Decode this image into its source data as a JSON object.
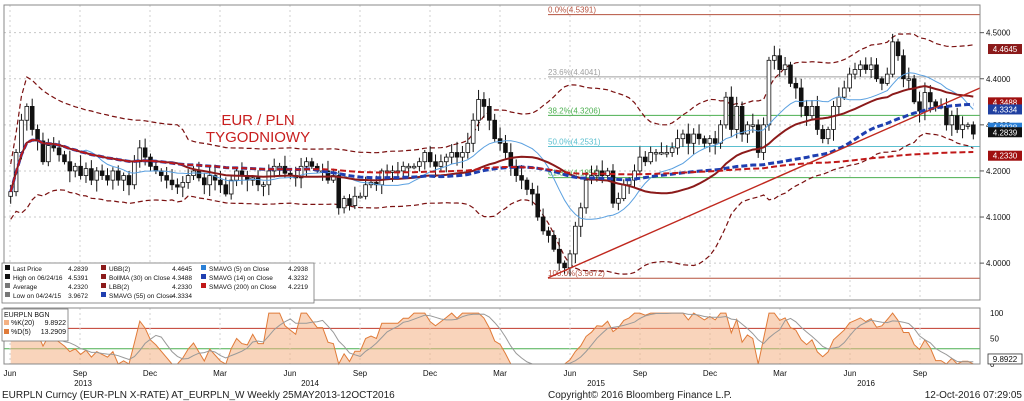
{
  "chart_data": [
    {
      "type": "candlestick",
      "instrument": "EURPLN Curncy (EUR-PLN X-RATE)",
      "title_annotation": [
        "EUR / PLN",
        "TYGODNIOWY"
      ],
      "ylim": [
        3.92,
        4.56
      ],
      "y_ticks": [
        4.0,
        4.1,
        4.2,
        4.3,
        4.4,
        4.5
      ],
      "y_tick_labels": [
        "4.0000",
        "4.1000",
        "4.2000",
        "4.3000",
        "4.4000",
        "4.5000"
      ],
      "x_month_labels": [
        "Jun",
        "Sep",
        "Dec",
        "Mar",
        "Jun",
        "Sep",
        "Dec",
        "Mar",
        "Jun",
        "Sep",
        "Dec",
        "Mar",
        "Jun",
        "Sep"
      ],
      "x_year_labels": [
        "2013",
        "2014",
        "2015",
        "2016"
      ],
      "fib_levels": [
        {
          "label": "0.0%(4.5391)",
          "value": 4.5391,
          "color": "#b5523f"
        },
        {
          "label": "23.6%(4.4041)",
          "value": 4.4041,
          "color": "#a0a0a0"
        },
        {
          "label": "38.2%(4.3206)",
          "value": 4.3206,
          "color": "#4caf50"
        },
        {
          "label": "50.0%(4.2531)",
          "value": 4.2531,
          "color": "#5bbfcf"
        },
        {
          "label": "61.8%(4.1856)",
          "value": 4.1856,
          "color": "#4caf50"
        },
        {
          "label": "100.0%(3.9672)",
          "value": 3.9672,
          "color": "#b5523f"
        }
      ],
      "right_tags": [
        {
          "text": "4.4645",
          "value": 4.4645,
          "bg": "#8b1a1a"
        },
        {
          "text": "4.3488",
          "value": 4.3488,
          "bg": "#a01010"
        },
        {
          "text": "4.3334",
          "value": 4.3334,
          "bg": "#1f3fa0"
        },
        {
          "text": "4.2938",
          "value": 4.2938,
          "bg": "#2a7fd6"
        },
        {
          "text": "4.2839",
          "value": 4.2839,
          "bg": "#111111"
        },
        {
          "text": "4.2330",
          "value": 4.233,
          "bg": "#a01010"
        }
      ],
      "weekly_closes": [
        4.155,
        4.24,
        4.31,
        4.34,
        4.29,
        4.265,
        4.22,
        4.255,
        4.25,
        4.235,
        4.22,
        4.2,
        4.21,
        4.19,
        4.205,
        4.18,
        4.2,
        4.19,
        4.18,
        4.2,
        4.18,
        4.19,
        4.17,
        4.22,
        4.25,
        4.23,
        4.21,
        4.2,
        4.19,
        4.18,
        4.17,
        4.165,
        4.175,
        4.19,
        4.2,
        4.185,
        4.17,
        4.19,
        4.18,
        4.17,
        4.15,
        4.18,
        4.2,
        4.19,
        4.18,
        4.185,
        4.17,
        4.17,
        4.2,
        4.21,
        4.21,
        4.195,
        4.19,
        4.185,
        4.21,
        4.22,
        4.21,
        4.2,
        4.2,
        4.18,
        4.19,
        4.12,
        4.14,
        4.125,
        4.145,
        4.145,
        4.17,
        4.175,
        4.17,
        4.2,
        4.2,
        4.2,
        4.2,
        4.21,
        4.21,
        4.21,
        4.22,
        4.24,
        4.22,
        4.21,
        4.22,
        4.23,
        4.24,
        4.23,
        4.24,
        4.26,
        4.31,
        4.355,
        4.34,
        4.31,
        4.27,
        4.26,
        4.24,
        4.21,
        4.19,
        4.18,
        4.16,
        4.15,
        4.1,
        4.07,
        4.06,
        4.03,
        4.0,
        3.99,
        4.02,
        4.08,
        4.12,
        4.18,
        4.19,
        4.2,
        4.19,
        4.2,
        4.13,
        4.14,
        4.17,
        4.18,
        4.2,
        4.23,
        4.22,
        4.24,
        4.24,
        4.24,
        4.24,
        4.25,
        4.27,
        4.28,
        4.26,
        4.28,
        4.27,
        4.26,
        4.27,
        4.26,
        4.3,
        4.36,
        4.29,
        4.34,
        4.28,
        4.3,
        4.3,
        4.24,
        4.3,
        4.44,
        4.45,
        4.42,
        4.43,
        4.39,
        4.38,
        4.34,
        4.32,
        4.34,
        4.29,
        4.27,
        4.29,
        4.34,
        4.36,
        4.38,
        4.41,
        4.42,
        4.43,
        4.42,
        4.43,
        4.4,
        4.39,
        4.41,
        4.48,
        4.45,
        4.4,
        4.4,
        4.35,
        4.33,
        4.37,
        4.35,
        4.34,
        4.34,
        4.3,
        4.32,
        4.29,
        4.3,
        4.3,
        4.28
      ],
      "legend": {
        "col1": [
          {
            "label": "Last Price",
            "value": "4.2839"
          },
          {
            "label": "High on 06/24/16",
            "value": "4.5391"
          },
          {
            "label": "Average",
            "value": "4.2320"
          },
          {
            "label": "Low on 04/24/15",
            "value": "3.9672"
          }
        ],
        "col2": [
          {
            "label": "UBB(2)",
            "value": "4.4645"
          },
          {
            "label": "BollMA (30) on Close",
            "value": "4.3488"
          },
          {
            "label": "LBB(2)",
            "value": "4.2330"
          },
          {
            "label": "SMAVG (55) on Close",
            "value": "4.3334"
          }
        ],
        "col3": [
          {
            "label": "SMAVG (5) on Close",
            "value": "4.2938"
          },
          {
            "label": "SMAVG (14) on Close",
            "value": "4.3232"
          },
          {
            "label": "SMAVG (200) on Close",
            "value": "4.2219"
          }
        ]
      }
    },
    {
      "type": "area",
      "indicator": "EURPLN BGN",
      "legend": [
        {
          "label": "%K(20)",
          "value": "9.8922"
        },
        {
          "label": "%D(5)",
          "value": "13.2909"
        }
      ],
      "ylim": [
        0,
        110
      ],
      "y_ticks": [
        0,
        50,
        100
      ],
      "y_tick_labels": [
        "0",
        "50",
        "100"
      ],
      "levels": [
        30,
        70
      ],
      "last_tag": "9.8922"
    }
  ],
  "footer": {
    "left": "EURPLN Curncy (EUR-PLN X-RATE) AT_EURPLN_W  Weekly 25MAY2013-12OCT2016",
    "center": "Copyright© 2016 Bloomberg Finance L.P.",
    "right": "12-Oct-2016 07:29:05"
  }
}
